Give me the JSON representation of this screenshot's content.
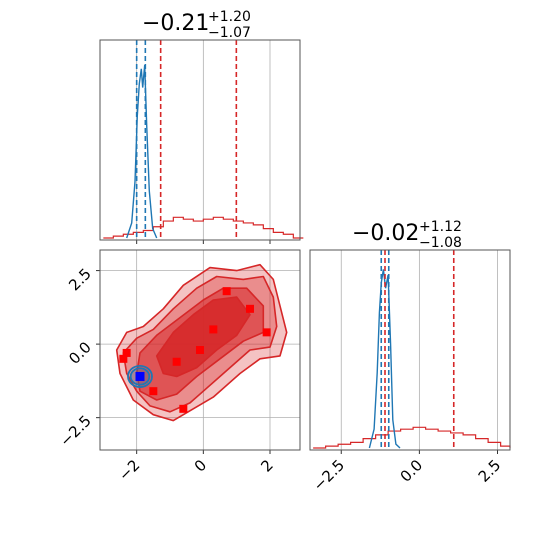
{
  "chart_data": {
    "type": "corner",
    "params": [
      "p0",
      "p1"
    ],
    "colors": {
      "posterior": "#d62728",
      "reference": "#1f77b4",
      "marker_true": "#0000ff",
      "marker_samples": "#ff0000",
      "grid": "#b0b0b0"
    },
    "panels": {
      "hist_p0": {
        "title_value": "−0.21",
        "title_sup": "+1.20",
        "title_sub": "−1.07",
        "xlim": [
          -3.1,
          2.9
        ],
        "red_lines": [
          -1.28,
          0.99
        ],
        "blue_lines": [
          -2.0,
          -1.74
        ],
        "red_hist": [
          [
            -3.0,
            0.0
          ],
          [
            -2.7,
            0.01
          ],
          [
            -2.4,
            0.02
          ],
          [
            -2.1,
            0.03
          ],
          [
            -1.8,
            0.04
          ],
          [
            -1.5,
            0.06
          ],
          [
            -1.2,
            0.09
          ],
          [
            -0.9,
            0.11
          ],
          [
            -0.6,
            0.1
          ],
          [
            -0.3,
            0.09
          ],
          [
            0.0,
            0.1
          ],
          [
            0.3,
            0.11
          ],
          [
            0.6,
            0.1
          ],
          [
            0.9,
            0.09
          ],
          [
            1.2,
            0.08
          ],
          [
            1.5,
            0.07
          ],
          [
            1.8,
            0.05
          ],
          [
            2.1,
            0.03
          ],
          [
            2.4,
            0.02
          ],
          [
            2.7,
            0.0
          ]
        ],
        "blue_curve": [
          [
            -2.3,
            0.0
          ],
          [
            -2.15,
            0.08
          ],
          [
            -2.05,
            0.3
          ],
          [
            -1.98,
            0.65
          ],
          [
            -1.92,
            0.82
          ],
          [
            -1.86,
            0.9
          ],
          [
            -1.82,
            0.8
          ],
          [
            -1.76,
            0.92
          ],
          [
            -1.7,
            0.6
          ],
          [
            -1.62,
            0.25
          ],
          [
            -1.52,
            0.05
          ],
          [
            -1.4,
            0.0
          ]
        ]
      },
      "hist_p1": {
        "title_value": "−0.02",
        "title_sup": "+1.12",
        "title_sub": "−1.08",
        "xlim": [
          -3.5,
          2.9
        ],
        "xticks": [
          -2.5,
          0.0,
          2.5
        ],
        "xtick_labels": [
          "−2.5",
          "0.0",
          "2.5"
        ],
        "red_lines": [
          -1.1,
          1.1
        ],
        "blue_lines": [
          -1.22,
          -0.98
        ],
        "red_hist": [
          [
            -3.4,
            0.0
          ],
          [
            -3.0,
            0.01
          ],
          [
            -2.6,
            0.02
          ],
          [
            -2.2,
            0.03
          ],
          [
            -1.8,
            0.05
          ],
          [
            -1.4,
            0.07
          ],
          [
            -1.0,
            0.09
          ],
          [
            -0.6,
            0.1
          ],
          [
            -0.2,
            0.11
          ],
          [
            0.2,
            0.1
          ],
          [
            0.6,
            0.09
          ],
          [
            1.0,
            0.08
          ],
          [
            1.4,
            0.07
          ],
          [
            1.8,
            0.05
          ],
          [
            2.2,
            0.03
          ],
          [
            2.6,
            0.01
          ]
        ],
        "blue_curve": [
          [
            -1.6,
            0.0
          ],
          [
            -1.45,
            0.1
          ],
          [
            -1.35,
            0.4
          ],
          [
            -1.28,
            0.72
          ],
          [
            -1.22,
            0.88
          ],
          [
            -1.15,
            0.95
          ],
          [
            -1.08,
            0.85
          ],
          [
            -1.0,
            0.92
          ],
          [
            -0.92,
            0.55
          ],
          [
            -0.85,
            0.15
          ],
          [
            -0.75,
            0.02
          ],
          [
            -0.62,
            0.0
          ]
        ]
      },
      "joint": {
        "xlim": [
          -3.1,
          2.9
        ],
        "ylim": [
          -3.6,
          3.2
        ],
        "xticks": [
          -2,
          0,
          2
        ],
        "xtick_labels": [
          "−2",
          "0",
          "2"
        ],
        "yticks": [
          2.5,
          0.0,
          -2.5
        ],
        "ytick_labels": [
          "2.5",
          "0.0",
          "−2.5"
        ],
        "contours": [
          [
            [
              -2.5,
              -1.0
            ],
            [
              -2.6,
              -0.2
            ],
            [
              -2.3,
              0.4
            ],
            [
              -1.8,
              0.6
            ],
            [
              -1.2,
              1.2
            ],
            [
              -0.6,
              2.0
            ],
            [
              0.2,
              2.6
            ],
            [
              1.0,
              2.5
            ],
            [
              1.7,
              2.7
            ],
            [
              2.1,
              2.2
            ],
            [
              2.3,
              1.3
            ],
            [
              2.5,
              0.4
            ],
            [
              2.3,
              -0.4
            ],
            [
              1.7,
              -0.5
            ],
            [
              1.1,
              -1.0
            ],
            [
              0.3,
              -1.8
            ],
            [
              -0.3,
              -2.2
            ],
            [
              -0.9,
              -2.6
            ],
            [
              -1.5,
              -2.4
            ],
            [
              -2.1,
              -1.9
            ]
          ],
          [
            [
              -2.3,
              -1.0
            ],
            [
              -2.4,
              -0.3
            ],
            [
              -2.0,
              0.2
            ],
            [
              -1.5,
              0.5
            ],
            [
              -0.9,
              1.2
            ],
            [
              -0.2,
              1.9
            ],
            [
              0.4,
              2.3
            ],
            [
              1.2,
              2.2
            ],
            [
              1.8,
              2.3
            ],
            [
              2.1,
              1.6
            ],
            [
              2.2,
              0.6
            ],
            [
              2.0,
              -0.1
            ],
            [
              1.4,
              -0.2
            ],
            [
              0.8,
              -0.8
            ],
            [
              0.1,
              -1.5
            ],
            [
              -0.4,
              -2.0
            ],
            [
              -1.0,
              -2.3
            ],
            [
              -1.6,
              -2.1
            ],
            [
              -2.0,
              -1.6
            ]
          ],
          [
            [
              -2.0,
              -1.0
            ],
            [
              -1.9,
              -0.3
            ],
            [
              -1.4,
              0.3
            ],
            [
              -0.7,
              0.9
            ],
            [
              0.0,
              1.5
            ],
            [
              0.6,
              1.9
            ],
            [
              1.3,
              1.9
            ],
            [
              1.8,
              1.3
            ],
            [
              1.8,
              0.4
            ],
            [
              1.2,
              0.1
            ],
            [
              0.5,
              -0.5
            ],
            [
              -0.2,
              -1.1
            ],
            [
              -0.8,
              -1.7
            ],
            [
              -1.4,
              -1.9
            ],
            [
              -1.9,
              -1.6
            ]
          ],
          [
            [
              -1.4,
              -0.4
            ],
            [
              -0.9,
              0.4
            ],
            [
              -0.3,
              1.0
            ],
            [
              0.3,
              1.5
            ],
            [
              1.0,
              1.6
            ],
            [
              1.4,
              1.0
            ],
            [
              1.0,
              0.3
            ],
            [
              0.4,
              -0.2
            ],
            [
              -0.2,
              -0.8
            ],
            [
              -0.8,
              -1.1
            ],
            [
              -1.2,
              -1.0
            ]
          ]
        ],
        "blue_contour_center": [
          -1.9,
          -1.1
        ],
        "blue_contour_radii": [
          0.28,
          0.36
        ],
        "true_point": [
          -1.9,
          -1.1
        ],
        "sample_points": [
          [
            -2.3,
            -0.3
          ],
          [
            -2.4,
            -0.5
          ],
          [
            -1.9,
            -1.1
          ],
          [
            -1.5,
            -1.6
          ],
          [
            -0.8,
            -0.6
          ],
          [
            -0.6,
            -2.2
          ],
          [
            0.3,
            0.5
          ],
          [
            0.7,
            1.8
          ],
          [
            1.4,
            1.2
          ],
          [
            1.9,
            0.4
          ],
          [
            -0.1,
            -0.2
          ]
        ]
      }
    }
  }
}
